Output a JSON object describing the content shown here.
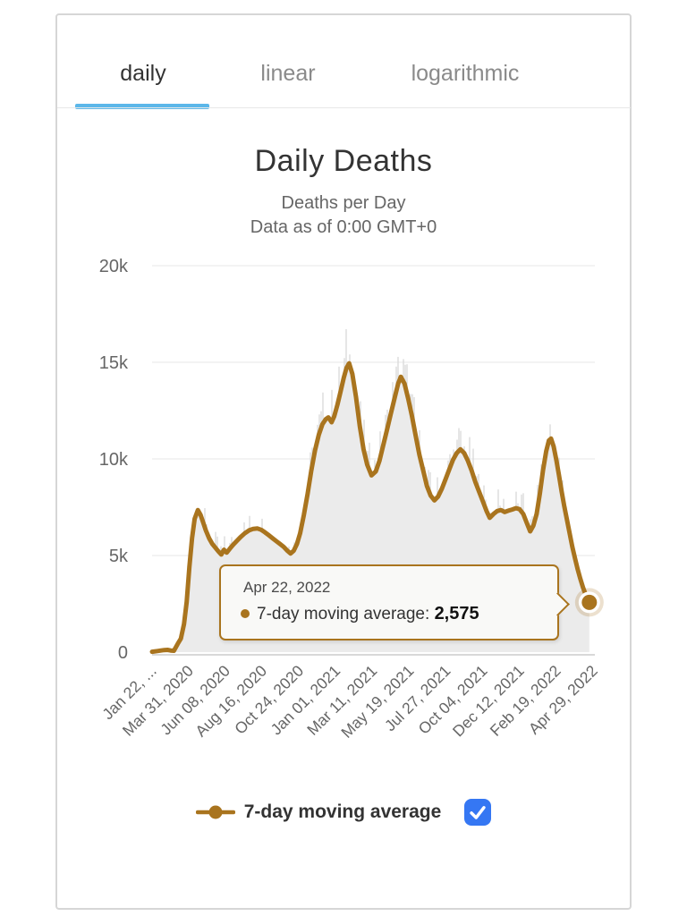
{
  "tabs": {
    "items": [
      {
        "label": "daily",
        "active": true
      },
      {
        "label": "linear",
        "active": false
      },
      {
        "label": "logarithmic",
        "active": false
      }
    ],
    "active_underline_color": "#5cb7e9"
  },
  "header": {
    "title": "Daily Deaths",
    "subtitle_line1": "Deaths per Day",
    "subtitle_line2": "Data as of 0:00 GMT+0"
  },
  "tooltip": {
    "date": "Apr 22, 2022",
    "series_label": "7-day moving average:",
    "value": "2,575"
  },
  "legend": {
    "label": "7-day moving average",
    "checkbox_checked": true,
    "checkbox_color": "#3577f3"
  },
  "colors": {
    "line": "#a9741e",
    "area_fill": "#ebebeb",
    "daily_bars": "#d9d9d9",
    "gridline": "#e7e7e7",
    "axis_line": "#cccccc",
    "axis_text": "#666666",
    "title_text": "#333333"
  },
  "chart_data": {
    "type": "line",
    "title": "Daily Deaths",
    "subtitle": "Deaths per Day — Data as of 0:00 GMT+0",
    "ylim": [
      0,
      20000
    ],
    "ytick_labels": [
      "0",
      "5k",
      "10k",
      "15k",
      "20k"
    ],
    "ytick_values": [
      0,
      5000,
      10000,
      15000,
      20000
    ],
    "xtick_labels": [
      "Jan 22, ...",
      "Mar 31, 2020",
      "Jun 08, 2020",
      "Aug 16, 2020",
      "Oct 24, 2020",
      "Jan 01, 2021",
      "Mar 11, 2021",
      "May 19, 2021",
      "Jul 27, 2021",
      "Oct 04, 2021",
      "Dec 12, 2021",
      "Feb 19, 2022",
      "Apr 29, 2022"
    ],
    "x_start_date": "2020-01-22",
    "x_end_date": "2022-04-29",
    "xtick_interval_days": 69,
    "grid": true,
    "legend_position": "bottom",
    "selected_point": {
      "date": "2022-04-22",
      "value": 2575
    },
    "raw_daily_bars": {
      "description": "Faint gray vertical bars of raw daily deaths fluctuating around the 7-day average, spiking up to ~17k near the Jan 2021 peak",
      "max_observed": 17300
    },
    "series": [
      {
        "name": "7-day moving average",
        "color": "#a9741e",
        "points": [
          [
            "2020-01-22",
            17
          ],
          [
            "2020-02-01",
            55
          ],
          [
            "2020-02-08",
            85
          ],
          [
            "2020-02-14",
            105
          ],
          [
            "2020-02-20",
            115
          ],
          [
            "2020-02-26",
            85
          ],
          [
            "2020-03-03",
            70
          ],
          [
            "2020-03-10",
            420
          ],
          [
            "2020-03-16",
            700
          ],
          [
            "2020-03-22",
            1450
          ],
          [
            "2020-03-27",
            2600
          ],
          [
            "2020-04-01",
            4400
          ],
          [
            "2020-04-06",
            5900
          ],
          [
            "2020-04-11",
            6900
          ],
          [
            "2020-04-17",
            7350
          ],
          [
            "2020-04-22",
            7100
          ],
          [
            "2020-04-27",
            6700
          ],
          [
            "2020-05-02",
            6300
          ],
          [
            "2020-05-08",
            5900
          ],
          [
            "2020-05-14",
            5600
          ],
          [
            "2020-05-20",
            5400
          ],
          [
            "2020-05-26",
            5200
          ],
          [
            "2020-05-31",
            5050
          ],
          [
            "2020-06-05",
            5300
          ],
          [
            "2020-06-10",
            5150
          ],
          [
            "2020-06-16",
            5350
          ],
          [
            "2020-06-22",
            5550
          ],
          [
            "2020-06-29",
            5750
          ],
          [
            "2020-07-06",
            5950
          ],
          [
            "2020-07-14",
            6150
          ],
          [
            "2020-07-22",
            6300
          ],
          [
            "2020-07-30",
            6380
          ],
          [
            "2020-08-07",
            6400
          ],
          [
            "2020-08-14",
            6330
          ],
          [
            "2020-08-21",
            6200
          ],
          [
            "2020-08-28",
            6050
          ],
          [
            "2020-09-04",
            5900
          ],
          [
            "2020-09-11",
            5750
          ],
          [
            "2020-09-18",
            5600
          ],
          [
            "2020-09-25",
            5450
          ],
          [
            "2020-10-02",
            5250
          ],
          [
            "2020-10-08",
            5100
          ],
          [
            "2020-10-14",
            5250
          ],
          [
            "2020-10-20",
            5600
          ],
          [
            "2020-10-26",
            6150
          ],
          [
            "2020-11-02",
            7100
          ],
          [
            "2020-11-09",
            8200
          ],
          [
            "2020-11-16",
            9400
          ],
          [
            "2020-11-23",
            10450
          ],
          [
            "2020-11-30",
            11250
          ],
          [
            "2020-12-07",
            11800
          ],
          [
            "2020-12-13",
            12050
          ],
          [
            "2020-12-18",
            12150
          ],
          [
            "2020-12-24",
            11900
          ],
          [
            "2020-12-29",
            12200
          ],
          [
            "2021-01-04",
            12800
          ],
          [
            "2021-01-10",
            13500
          ],
          [
            "2021-01-16",
            14200
          ],
          [
            "2021-01-21",
            14700
          ],
          [
            "2021-01-26",
            14950
          ],
          [
            "2021-02-01",
            14400
          ],
          [
            "2021-02-08",
            13200
          ],
          [
            "2021-02-15",
            11700
          ],
          [
            "2021-02-22",
            10500
          ],
          [
            "2021-03-01",
            9700
          ],
          [
            "2021-03-09",
            9150
          ],
          [
            "2021-03-17",
            9350
          ],
          [
            "2021-03-24",
            9900
          ],
          [
            "2021-03-31",
            10700
          ],
          [
            "2021-04-07",
            11500
          ],
          [
            "2021-04-14",
            12300
          ],
          [
            "2021-04-21",
            13100
          ],
          [
            "2021-04-28",
            13900
          ],
          [
            "2021-05-03",
            14250
          ],
          [
            "2021-05-10",
            13900
          ],
          [
            "2021-05-17",
            13100
          ],
          [
            "2021-05-24",
            12200
          ],
          [
            "2021-05-31",
            11200
          ],
          [
            "2021-06-07",
            10200
          ],
          [
            "2021-06-14",
            9400
          ],
          [
            "2021-06-21",
            8600
          ],
          [
            "2021-06-28",
            8100
          ],
          [
            "2021-07-05",
            7850
          ],
          [
            "2021-07-12",
            8050
          ],
          [
            "2021-07-19",
            8450
          ],
          [
            "2021-07-26",
            8950
          ],
          [
            "2021-08-02",
            9450
          ],
          [
            "2021-08-09",
            9950
          ],
          [
            "2021-08-16",
            10300
          ],
          [
            "2021-08-23",
            10500
          ],
          [
            "2021-08-30",
            10300
          ],
          [
            "2021-09-06",
            9900
          ],
          [
            "2021-09-13",
            9400
          ],
          [
            "2021-09-20",
            8800
          ],
          [
            "2021-09-27",
            8300
          ],
          [
            "2021-10-04",
            7800
          ],
          [
            "2021-10-11",
            7300
          ],
          [
            "2021-10-17",
            6950
          ],
          [
            "2021-10-24",
            7150
          ],
          [
            "2021-10-31",
            7300
          ],
          [
            "2021-11-07",
            7350
          ],
          [
            "2021-11-14",
            7250
          ],
          [
            "2021-11-21",
            7320
          ],
          [
            "2021-11-28",
            7380
          ],
          [
            "2021-12-05",
            7450
          ],
          [
            "2021-12-12",
            7400
          ],
          [
            "2021-12-19",
            7150
          ],
          [
            "2021-12-26",
            6650
          ],
          [
            "2022-01-01",
            6250
          ],
          [
            "2022-01-07",
            6550
          ],
          [
            "2022-01-13",
            7150
          ],
          [
            "2022-01-19",
            8200
          ],
          [
            "2022-01-25",
            9400
          ],
          [
            "2022-01-31",
            10400
          ],
          [
            "2022-02-05",
            10950
          ],
          [
            "2022-02-09",
            11050
          ],
          [
            "2022-02-14",
            10650
          ],
          [
            "2022-02-19",
            9950
          ],
          [
            "2022-02-24",
            9150
          ],
          [
            "2022-03-01",
            8300
          ],
          [
            "2022-03-06",
            7550
          ],
          [
            "2022-03-11",
            6850
          ],
          [
            "2022-03-16",
            6150
          ],
          [
            "2022-03-21",
            5450
          ],
          [
            "2022-03-26",
            4850
          ],
          [
            "2022-03-31",
            4300
          ],
          [
            "2022-04-05",
            3800
          ],
          [
            "2022-04-10",
            3350
          ],
          [
            "2022-04-14",
            3050
          ],
          [
            "2022-04-18",
            2800
          ],
          [
            "2022-04-22",
            2575
          ]
        ]
      }
    ]
  }
}
